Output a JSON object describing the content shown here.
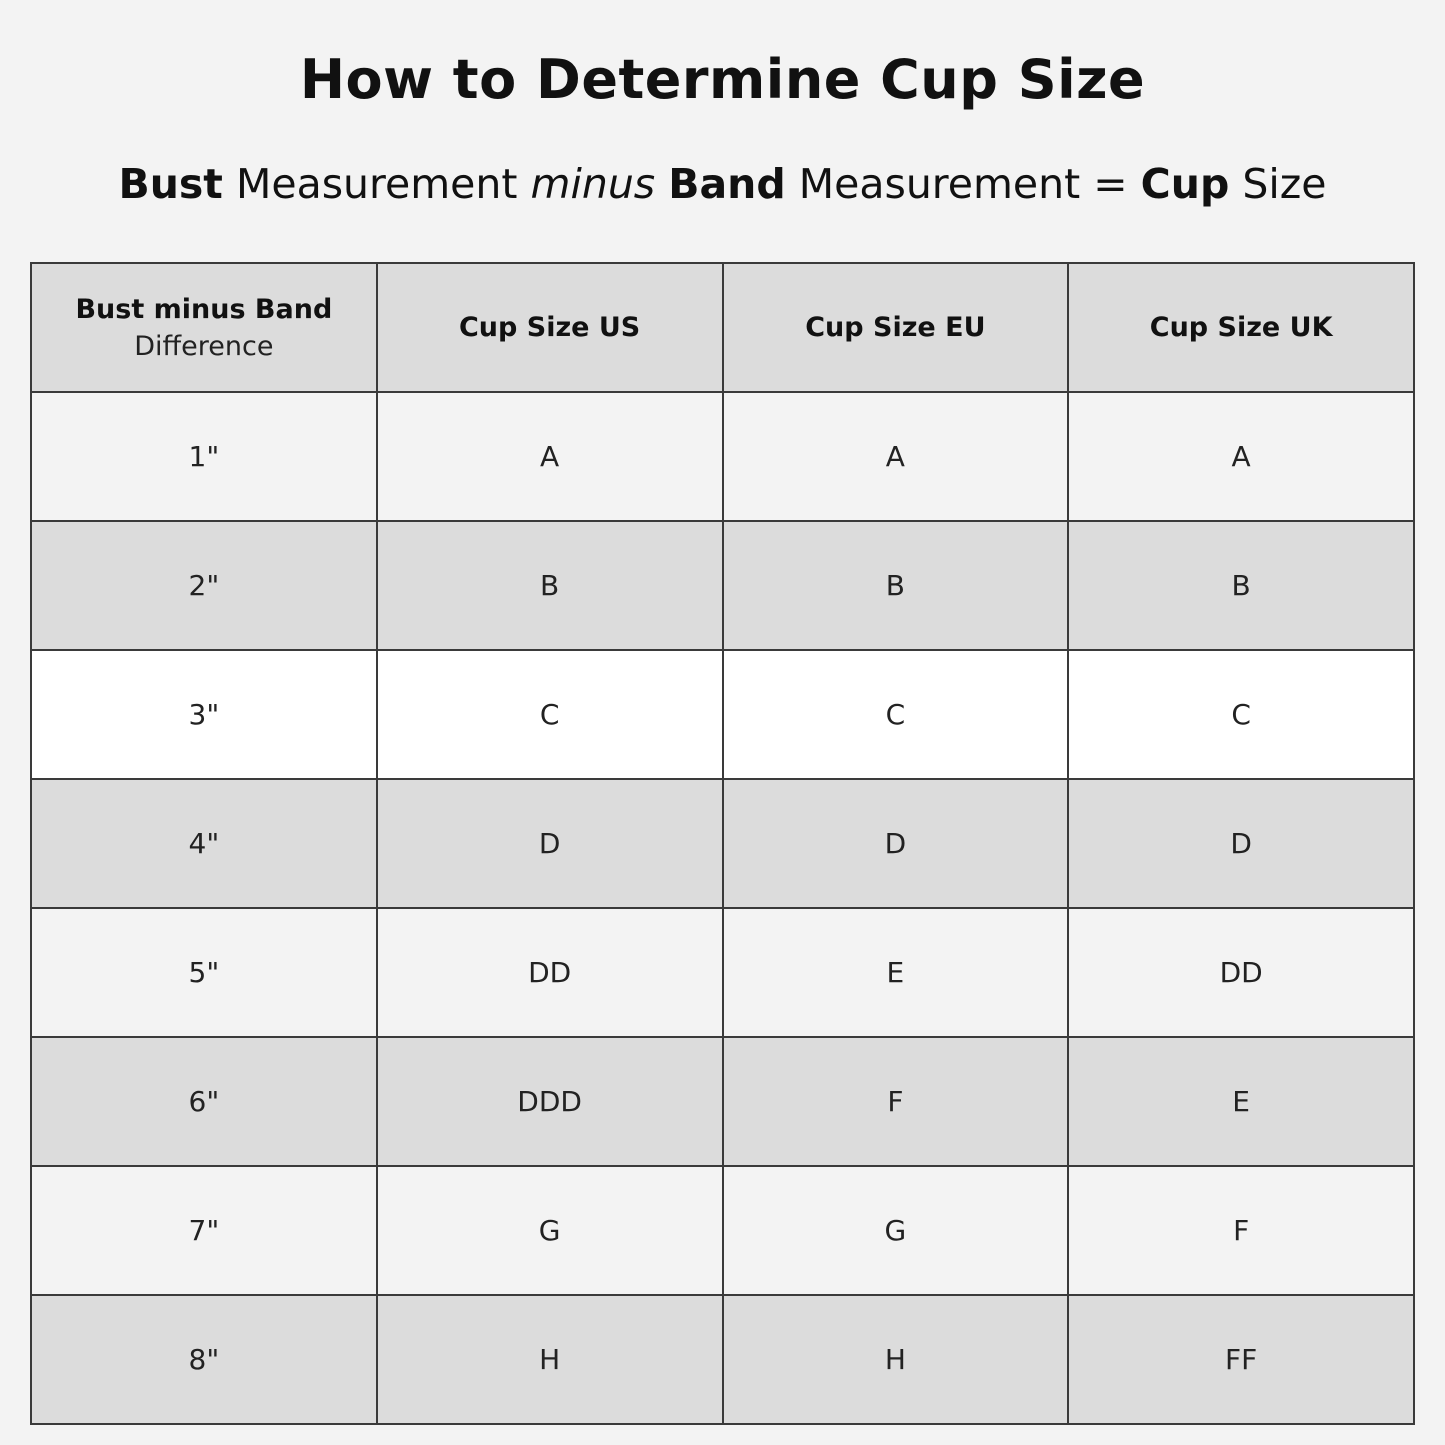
{
  "title": "How to Determine Cup Size",
  "formula": {
    "bust": "Bust",
    "measurement1": "Measurement",
    "minus": "minus",
    "band": "Band",
    "measurement2": "Measurement",
    "equals": "=",
    "cup": "Cup",
    "size": "Size"
  },
  "table": {
    "headers": [
      {
        "main": "Bust minus Band",
        "sub": "Difference"
      },
      {
        "main": "Cup Size US"
      },
      {
        "main": "Cup Size EU"
      },
      {
        "main": "Cup Size UK"
      }
    ],
    "rows": [
      [
        "1\"",
        "A",
        "A",
        "A"
      ],
      [
        "2\"",
        "B",
        "B",
        "B"
      ],
      [
        "3\"",
        "C",
        "C",
        "C"
      ],
      [
        "4\"",
        "D",
        "D",
        "D"
      ],
      [
        "5\"",
        "DD",
        "E",
        "DD"
      ],
      [
        "6\"",
        "DDD",
        "F",
        "E"
      ],
      [
        "7\"",
        "G",
        "G",
        "F"
      ],
      [
        "8\"",
        "H",
        "H",
        "FF"
      ]
    ]
  },
  "colors": {
    "background": "#f3f3f3",
    "header": "#dcdcdc",
    "band": "#dcdcdc",
    "highlight": "#ffffff",
    "border": "#3a3a3a"
  }
}
